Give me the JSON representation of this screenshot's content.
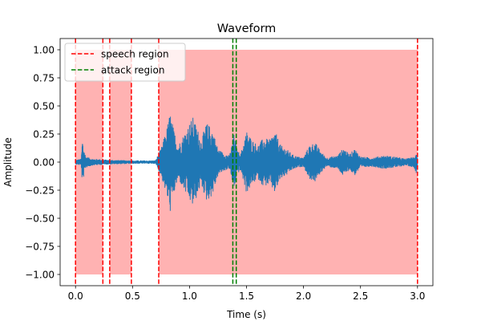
{
  "chart_data": {
    "type": "line",
    "title": "Waveform",
    "xlabel": "Time (s)",
    "ylabel": "Amplitude",
    "xlim": [
      -0.135,
      3.135
    ],
    "ylim": [
      -1.1,
      1.1
    ],
    "xticks": [
      0.0,
      0.5,
      1.0,
      1.5,
      2.0,
      2.5,
      3.0
    ],
    "xtick_labels": [
      "0.0",
      "0.5",
      "1.0",
      "1.5",
      "2.0",
      "2.5",
      "3.0"
    ],
    "yticks": [
      -1.0,
      -0.75,
      -0.5,
      -0.25,
      0.0,
      0.25,
      0.5,
      0.75,
      1.0
    ],
    "ytick_labels": [
      "−1.00",
      "−0.75",
      "−0.50",
      "−0.25",
      "0.00",
      "0.25",
      "0.50",
      "0.75",
      "1.00"
    ],
    "waveform": {
      "color": "#1f77b4",
      "x_range": [
        0.0,
        3.0
      ],
      "envelope": [
        [
          0.0,
          0.02
        ],
        [
          0.05,
          0.03
        ],
        [
          0.06,
          0.22
        ],
        [
          0.07,
          0.14
        ],
        [
          0.09,
          0.05
        ],
        [
          0.15,
          0.03
        ],
        [
          0.3,
          0.02
        ],
        [
          0.5,
          0.015
        ],
        [
          0.7,
          0.015
        ],
        [
          0.75,
          0.12
        ],
        [
          0.8,
          0.3
        ],
        [
          0.83,
          0.45
        ],
        [
          0.86,
          0.3
        ],
        [
          0.9,
          0.15
        ],
        [
          0.95,
          0.25
        ],
        [
          1.0,
          0.35
        ],
        [
          1.03,
          0.4
        ],
        [
          1.07,
          0.3
        ],
        [
          1.1,
          0.2
        ],
        [
          1.15,
          0.35
        ],
        [
          1.2,
          0.3
        ],
        [
          1.25,
          0.12
        ],
        [
          1.3,
          0.08
        ],
        [
          1.35,
          0.06
        ],
        [
          1.39,
          0.25
        ],
        [
          1.42,
          0.1
        ],
        [
          1.45,
          0.08
        ],
        [
          1.5,
          0.28
        ],
        [
          1.55,
          0.2
        ],
        [
          1.6,
          0.15
        ],
        [
          1.65,
          0.22
        ],
        [
          1.7,
          0.2
        ],
        [
          1.75,
          0.28
        ],
        [
          1.8,
          0.15
        ],
        [
          1.85,
          0.12
        ],
        [
          1.9,
          0.07
        ],
        [
          1.95,
          0.05
        ],
        [
          2.0,
          0.04
        ],
        [
          2.05,
          0.15
        ],
        [
          2.1,
          0.18
        ],
        [
          2.15,
          0.1
        ],
        [
          2.2,
          0.04
        ],
        [
          2.3,
          0.06
        ],
        [
          2.35,
          0.13
        ],
        [
          2.4,
          0.07
        ],
        [
          2.45,
          0.12
        ],
        [
          2.5,
          0.05
        ],
        [
          2.6,
          0.04
        ],
        [
          2.7,
          0.06
        ],
        [
          2.8,
          0.05
        ],
        [
          2.9,
          0.03
        ],
        [
          2.97,
          0.05
        ],
        [
          2.99,
          0.1
        ],
        [
          3.0,
          0.04
        ]
      ]
    },
    "speech_regions": [
      [
        0.0,
        0.24
      ],
      [
        0.3,
        0.49
      ],
      [
        0.73,
        3.0
      ]
    ],
    "speech_region_fill_range": [
      -1.0,
      1.0
    ],
    "speech_region_fill_color": "#ff0000",
    "speech_line_color": "#ff0000",
    "attack_region": [
      1.38,
      1.41
    ],
    "attack_line_color": "#008000",
    "legend": {
      "location": "upper-left",
      "entries": [
        {
          "label": "speech region",
          "color": "#ff0000",
          "style": "dashed"
        },
        {
          "label": "attack region",
          "color": "#008000",
          "style": "dashed"
        }
      ]
    }
  }
}
